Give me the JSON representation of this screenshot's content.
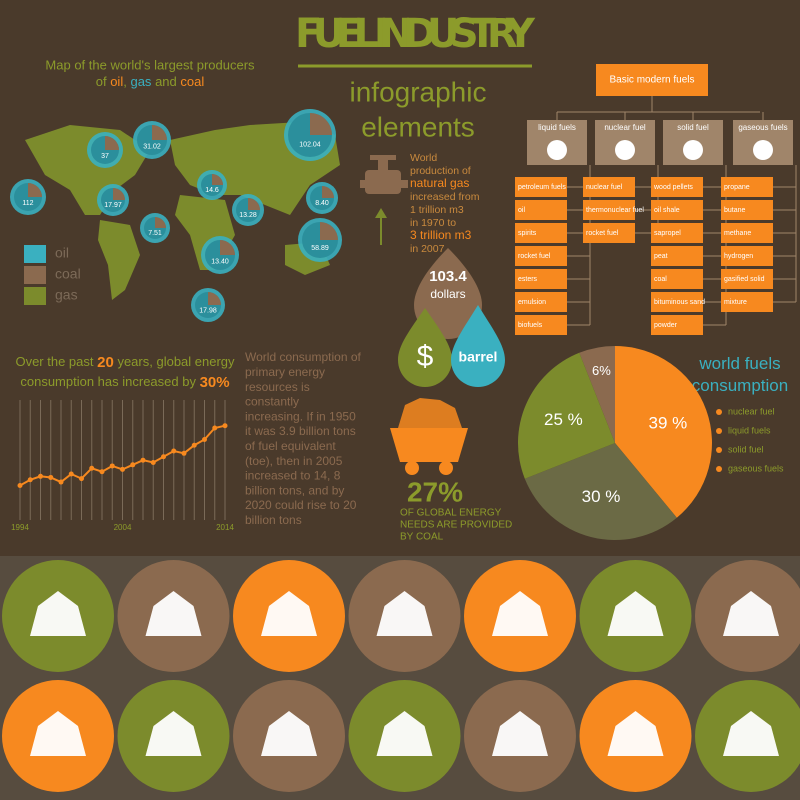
{
  "header": {
    "title": "FUEL INDUSTRY",
    "subtitle_1": "infographic",
    "subtitle_2": "elements"
  },
  "map": {
    "caption_1": "Map of the world's largest producers",
    "caption_2": [
      "of",
      "oil",
      ",",
      "gas",
      "and",
      "coal"
    ],
    "bubbles": [
      "112",
      "37",
      "31.02",
      "102.04",
      "17.97",
      "7.51",
      "13.28",
      "13.40",
      "58.89",
      "17.98",
      "14.6",
      "8.40"
    ],
    "legend": [
      "oil",
      "coal",
      "gas"
    ]
  },
  "gas_note": [
    "World",
    "production of",
    "natural gas",
    "increased from",
    "1 trillion m3",
    "in 1970 to",
    "3 trillion m3",
    "in 2007"
  ],
  "price": {
    "value": "103.4",
    "unit": "dollars",
    "item": "barrel"
  },
  "energy_note": {
    "parts": [
      "Over the past",
      "20",
      "years, global energy",
      "consumption has increased by",
      "30%"
    ]
  },
  "paragraph": [
    "World consumption of",
    "primary energy",
    "resources  is",
    "constantly",
    "increasing. If in 1950",
    "it was 3.9 billion tons",
    "of fuel equivalent",
    "(toe), then in 2005",
    "increased to 14, 8",
    "billion tons, and by",
    "2020 could rise to 20",
    "billion tons"
  ],
  "coal": {
    "share": "27%",
    "lines": [
      "OF GLOBAL ENERGY",
      "NEEDS ARE PROVIDED",
      "BY COAL"
    ]
  },
  "fuels_tree": {
    "root": "Basic modern fuels",
    "groups": [
      {
        "name": "liquid fuels",
        "items": [
          "petroleum fuels",
          "oil",
          "spirits",
          "rocket fuel",
          "esters",
          "emulsion",
          "biofuels"
        ]
      },
      {
        "name": "nuclear fuel",
        "items": [
          "nuclear fuel",
          "thermonuclear fuel",
          "rocket fuel"
        ]
      },
      {
        "name": "solid fuel",
        "items": [
          "wood pellets",
          "oil shale",
          "sapropel",
          "peat",
          "coal",
          "bituminous sand",
          "powder"
        ]
      },
      {
        "name": "gaseous fuels",
        "items": [
          "propane",
          "butane",
          "methane",
          "hydrogen",
          "gasified solid",
          "mixture"
        ]
      }
    ]
  },
  "chart_data": [
    {
      "type": "line",
      "x": [
        1994,
        1995,
        1996,
        1997,
        1998,
        1999,
        2000,
        2001,
        2002,
        2003,
        2004,
        2005,
        2006,
        2007,
        2008,
        2009,
        2010,
        2011,
        2012,
        2013,
        2014
      ],
      "values": [
        30,
        35,
        38,
        37,
        33,
        40,
        36,
        45,
        42,
        47,
        44,
        48,
        52,
        50,
        55,
        60,
        58,
        65,
        70,
        80,
        82
      ],
      "color": "#f7891f",
      "xlim": [
        1994,
        2014
      ],
      "ylim": [
        0,
        100
      ],
      "xticks": [
        1994,
        2004,
        2014
      ]
    },
    {
      "type": "pie",
      "title": "world fuels consumption",
      "categories": [
        "nuclear fuel",
        "liquid fuels",
        "solid fuel",
        "gaseous fuels"
      ],
      "values": [
        6,
        39,
        30,
        25
      ],
      "value_labels": [
        "6%",
        "39 %",
        "30 %",
        "25 %"
      ],
      "colors": [
        "#8b6a4f",
        "#f7891f",
        "#6b6a45",
        "#7c8b2c"
      ]
    }
  ]
}
